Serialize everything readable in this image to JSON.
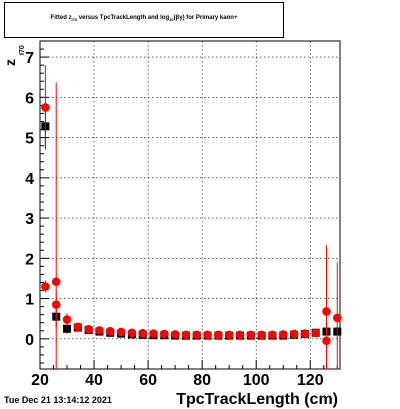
{
  "chart_data": {
    "type": "scatter",
    "title": {
      "prefix": "Fitted  z",
      "sub1": "I70",
      "middle": "  versus TpcTrackLength and log",
      "sub2": "10",
      "tail": "(βγ) for Primary kaon+"
    },
    "xlabel": "TpcTrackLength (cm)",
    "ylabel": "z",
    "ylabel_sub": "I70",
    "xlim": [
      20,
      131
    ],
    "ylim": [
      -0.75,
      7.4
    ],
    "xticks": [
      20,
      40,
      60,
      80,
      100,
      120
    ],
    "yticks": [
      0,
      1,
      2,
      3,
      4,
      5,
      6,
      7
    ],
    "grid": true,
    "series": [
      {
        "color": "#000000",
        "marker": "square",
        "points": [
          {
            "x": 22,
            "y": 5.28,
            "err": 0.55
          },
          {
            "x": 26,
            "y": 0.55,
            "err": 0.25
          },
          {
            "x": 30,
            "y": 0.25,
            "err": 0.12
          },
          {
            "x": 34,
            "y": 0.28,
            "err": 0.05
          },
          {
            "x": 38,
            "y": 0.22,
            "err": 0.03
          },
          {
            "x": 42,
            "y": 0.18,
            "err": 0.03
          },
          {
            "x": 46,
            "y": 0.15,
            "err": 0.02
          },
          {
            "x": 50,
            "y": 0.13,
            "err": 0.02
          },
          {
            "x": 54,
            "y": 0.11,
            "err": 0.02
          },
          {
            "x": 58,
            "y": 0.1,
            "err": 0.02
          },
          {
            "x": 62,
            "y": 0.09,
            "err": 0.02
          },
          {
            "x": 66,
            "y": 0.09,
            "err": 0.02
          },
          {
            "x": 70,
            "y": 0.08,
            "err": 0.02
          },
          {
            "x": 74,
            "y": 0.08,
            "err": 0.02
          },
          {
            "x": 78,
            "y": 0.08,
            "err": 0.02
          },
          {
            "x": 82,
            "y": 0.08,
            "err": 0.02
          },
          {
            "x": 86,
            "y": 0.08,
            "err": 0.02
          },
          {
            "x": 90,
            "y": 0.08,
            "err": 0.02
          },
          {
            "x": 94,
            "y": 0.08,
            "err": 0.02
          },
          {
            "x": 98,
            "y": 0.08,
            "err": 0.02
          },
          {
            "x": 102,
            "y": 0.08,
            "err": 0.02
          },
          {
            "x": 106,
            "y": 0.08,
            "err": 0.02
          },
          {
            "x": 110,
            "y": 0.08,
            "err": 0.02
          },
          {
            "x": 114,
            "y": 0.1,
            "err": 0.03
          },
          {
            "x": 118,
            "y": 0.12,
            "err": 0.03
          },
          {
            "x": 122,
            "y": 0.15,
            "err": 0.05
          },
          {
            "x": 126,
            "y": 0.18,
            "err": 0.1
          },
          {
            "x": 130,
            "y": 0.18,
            "err": 0.12
          }
        ]
      },
      {
        "color": "#ff0000",
        "marker": "circle",
        "points": [
          {
            "x": 22,
            "y": 5.75,
            "err": 1.05
          },
          {
            "x": 22,
            "y": 1.3,
            "err": 0.15
          },
          {
            "x": 26,
            "y": 1.42,
            "err": 4.95
          },
          {
            "x": 26,
            "y": 0.85,
            "err": 0.3
          },
          {
            "x": 30,
            "y": 0.48,
            "err": 0.15
          },
          {
            "x": 34,
            "y": 0.3,
            "err": 0.06
          },
          {
            "x": 38,
            "y": 0.24,
            "err": 0.04
          },
          {
            "x": 42,
            "y": 0.21,
            "err": 0.03
          },
          {
            "x": 46,
            "y": 0.19,
            "err": 0.03
          },
          {
            "x": 50,
            "y": 0.17,
            "err": 0.03
          },
          {
            "x": 54,
            "y": 0.15,
            "err": 0.03
          },
          {
            "x": 58,
            "y": 0.14,
            "err": 0.03
          },
          {
            "x": 62,
            "y": 0.13,
            "err": 0.02
          },
          {
            "x": 66,
            "y": 0.12,
            "err": 0.02
          },
          {
            "x": 70,
            "y": 0.11,
            "err": 0.02
          },
          {
            "x": 74,
            "y": 0.1,
            "err": 0.02
          },
          {
            "x": 78,
            "y": 0.1,
            "err": 0.02
          },
          {
            "x": 82,
            "y": 0.1,
            "err": 0.02
          },
          {
            "x": 86,
            "y": 0.1,
            "err": 0.02
          },
          {
            "x": 90,
            "y": 0.1,
            "err": 0.02
          },
          {
            "x": 94,
            "y": 0.1,
            "err": 0.02
          },
          {
            "x": 98,
            "y": 0.1,
            "err": 0.02
          },
          {
            "x": 102,
            "y": 0.1,
            "err": 0.02
          },
          {
            "x": 106,
            "y": 0.1,
            "err": 0.02
          },
          {
            "x": 110,
            "y": 0.11,
            "err": 0.02
          },
          {
            "x": 114,
            "y": 0.12,
            "err": 0.03
          },
          {
            "x": 118,
            "y": 0.13,
            "err": 0.04
          },
          {
            "x": 122,
            "y": 0.15,
            "err": 0.08
          },
          {
            "x": 126,
            "y": 0.68,
            "err": 1.65
          },
          {
            "x": 126,
            "y": -0.05,
            "err": 0.5
          },
          {
            "x": 130,
            "y": 0.52,
            "err": 1.38
          }
        ]
      }
    ]
  },
  "timestamp": "Tue Dec 21 13:14:12 2021"
}
